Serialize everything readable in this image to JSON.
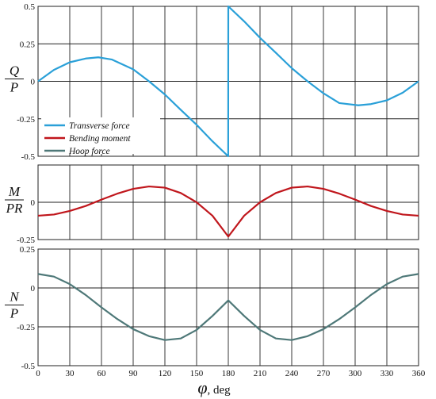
{
  "chart_data": [
    {
      "type": "line",
      "ylabel_num": "Q",
      "ylabel_den": "P",
      "xlim": [
        0,
        360
      ],
      "ylim": [
        -0.5,
        0.5
      ],
      "yticks": [
        {
          "value": 0.5,
          "label": "0.5"
        },
        {
          "value": 0.25,
          "label": "0.25"
        },
        {
          "value": 0,
          "label": "0"
        },
        {
          "value": -0.25,
          "label": "-0.25"
        },
        {
          "value": -0.5,
          "label": "-0.5"
        }
      ],
      "grid": true,
      "legend_position": "bottom-left",
      "series": [
        {
          "name": "Transverse force",
          "color": "#2aa0d8",
          "x": [
            0,
            15,
            30,
            45,
            57,
            70,
            90,
            105,
            120,
            135,
            150,
            165,
            179.9,
            180,
            195,
            210,
            225,
            240,
            255,
            270,
            285,
            303,
            315,
            330,
            345,
            360
          ],
          "y": [
            0,
            0.076,
            0.127,
            0.152,
            0.16,
            0.145,
            0.08,
            0.0,
            -0.088,
            -0.19,
            -0.29,
            -0.4,
            -0.5,
            0.5,
            0.4,
            0.29,
            0.19,
            0.088,
            0.0,
            -0.08,
            -0.145,
            -0.16,
            -0.152,
            -0.127,
            -0.076,
            0
          ]
        }
      ]
    },
    {
      "type": "line",
      "ylabel_num": "M",
      "ylabel_den": "PR",
      "xlim": [
        0,
        360
      ],
      "ylim": [
        -0.25,
        0.25
      ],
      "yticks": [
        {
          "value": 0,
          "label": "0"
        },
        {
          "value": -0.25,
          "label": "-0.25"
        }
      ],
      "grid": true,
      "series": [
        {
          "name": "Bending moment",
          "color": "#c0161c",
          "x": [
            0,
            15,
            30,
            45,
            60,
            75,
            90,
            105,
            120,
            135,
            150,
            165,
            180,
            195,
            210,
            225,
            240,
            255,
            270,
            285,
            300,
            315,
            330,
            345,
            360
          ],
          "y": [
            -0.09,
            -0.082,
            -0.058,
            -0.025,
            0.018,
            0.058,
            0.09,
            0.106,
            0.098,
            0.062,
            0.0,
            -0.09,
            -0.23,
            -0.09,
            0.0,
            0.062,
            0.098,
            0.106,
            0.09,
            0.058,
            0.018,
            -0.025,
            -0.058,
            -0.082,
            -0.09
          ]
        }
      ]
    },
    {
      "type": "line",
      "ylabel_num": "N",
      "ylabel_den": "P",
      "xlabel_symbol": "φ",
      "xlabel_unit": ", deg",
      "xlim": [
        0,
        360
      ],
      "ylim": [
        -0.5,
        0.25
      ],
      "yticks": [
        {
          "value": 0.25,
          "label": "0.25"
        },
        {
          "value": 0,
          "label": "0"
        },
        {
          "value": -0.25,
          "label": "-0.25"
        },
        {
          "value": -0.5,
          "label": "-0.5"
        }
      ],
      "xticks": [
        "0",
        "30",
        "60",
        "90",
        "120",
        "150",
        "180",
        "210",
        "240",
        "270",
        "300",
        "330",
        "360"
      ],
      "grid": true,
      "series": [
        {
          "name": "Hoop force",
          "color": "#4e7878",
          "x": [
            0,
            15,
            30,
            45,
            60,
            75,
            90,
            105,
            120,
            135,
            150,
            165,
            180,
            195,
            210,
            225,
            240,
            255,
            270,
            285,
            300,
            315,
            330,
            345,
            360
          ],
          "y": [
            0.09,
            0.073,
            0.025,
            -0.045,
            -0.125,
            -0.2,
            -0.265,
            -0.31,
            -0.335,
            -0.325,
            -0.27,
            -0.18,
            -0.08,
            -0.18,
            -0.27,
            -0.325,
            -0.335,
            -0.31,
            -0.265,
            -0.2,
            -0.125,
            -0.045,
            0.025,
            0.073,
            0.09
          ]
        }
      ]
    }
  ]
}
